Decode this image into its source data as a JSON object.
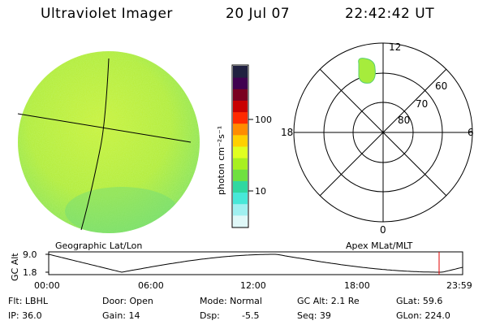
{
  "header": {
    "instrument": "Ultraviolet Imager",
    "date": "20 Jul 07",
    "time": "22:42:42 UT"
  },
  "geographic_panel": {
    "label": "Geographic Lat/Lon"
  },
  "colorbar": {
    "unit_label": "photon cm⁻²s⁻¹",
    "ticks": [
      "100",
      "10"
    ],
    "colors": [
      "#202040",
      "#400050",
      "#7a0020",
      "#c80000",
      "#ff2a00",
      "#ff8c00",
      "#ffd000",
      "#e0ff20",
      "#a8f020",
      "#6fe040",
      "#30d8a0",
      "#48e8d8",
      "#a0f0f0",
      "#e0f8f8"
    ]
  },
  "polar_panel": {
    "label": "Apex MLat/MLT",
    "mlt_labels": [
      "12",
      "18",
      "6",
      "0"
    ],
    "lat_labels": [
      "60",
      "70",
      "80"
    ]
  },
  "altitude_plot": {
    "ylabel": "GC Alt",
    "yticks": [
      "9.0",
      "1.8"
    ],
    "xticks": [
      "00:00",
      "06:00",
      "12:00",
      "18:00",
      "23:59"
    ],
    "marker_color": "#e00000"
  },
  "status": {
    "flt": "Flt: LBHL",
    "ip": "IP: 36.0",
    "door": "Door: Open",
    "gain": "Gain: 14",
    "mode": "Mode: Normal",
    "dsp_label": "Dsp:",
    "dsp_value": "-5.5",
    "gc_alt": "GC Alt: 2.1 Re",
    "seq": "Seq: 39",
    "glat": "GLat: 59.6",
    "glon": "GLon: 224.0"
  }
}
